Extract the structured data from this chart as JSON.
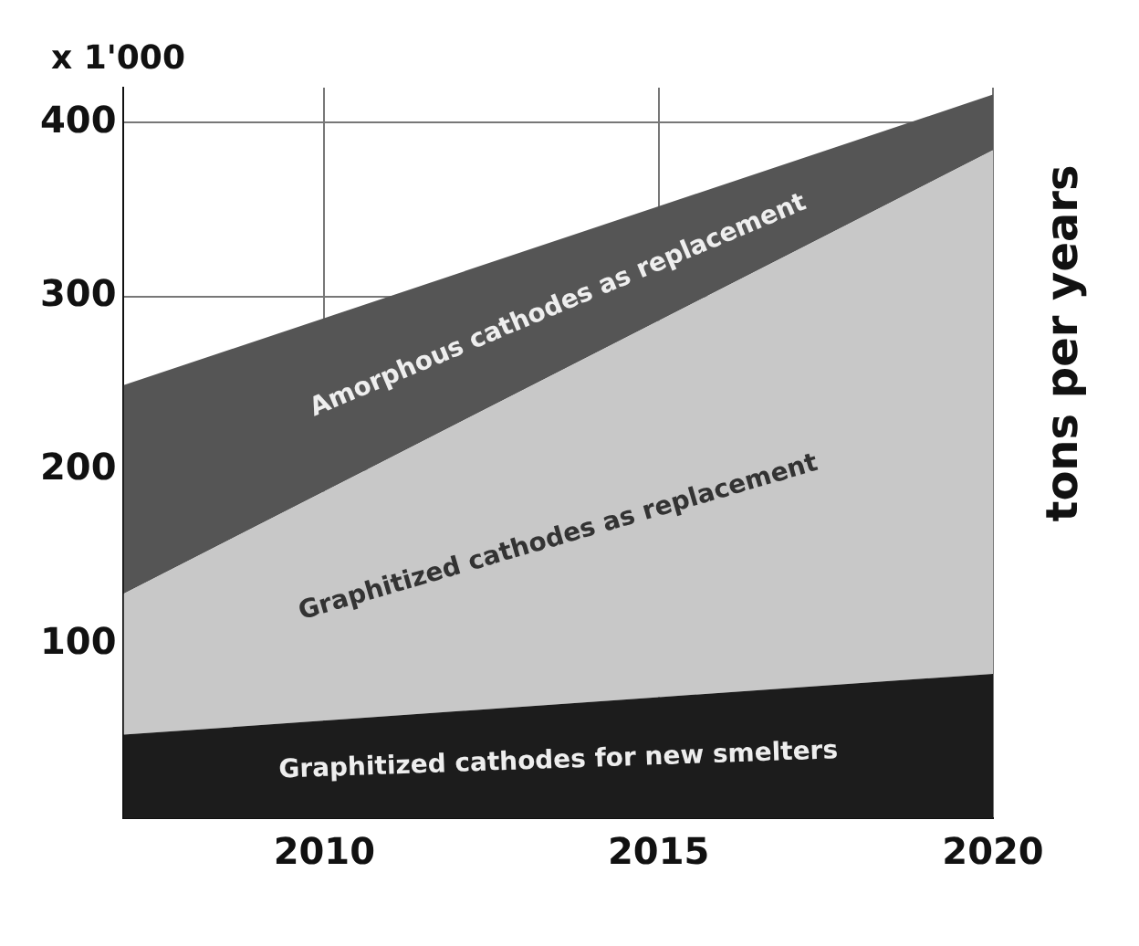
{
  "chart_data": {
    "type": "area",
    "stacked": true,
    "ylabel": "tons per years",
    "annotations": [
      "x 1'000"
    ],
    "x": [
      2007,
      2020
    ],
    "series": [
      {
        "name": "Graphitized cathodes for new smelters",
        "color": "#1c1c1c",
        "values": [
          48,
          83
        ]
      },
      {
        "name": "Graphitized cathodes as replacement",
        "color": "#c8c8c8",
        "values": [
          81,
          301
        ]
      },
      {
        "name": "Amorphous cathodes as replacement",
        "color": "#555555",
        "values": [
          120,
          32
        ]
      }
    ],
    "xlim": [
      2007,
      2020
    ],
    "xticks": [
      2010,
      2015,
      2020
    ],
    "ylim": [
      0,
      420
    ],
    "yticks": [
      100,
      200,
      300,
      400
    ],
    "grid": true,
    "legend": false
  }
}
